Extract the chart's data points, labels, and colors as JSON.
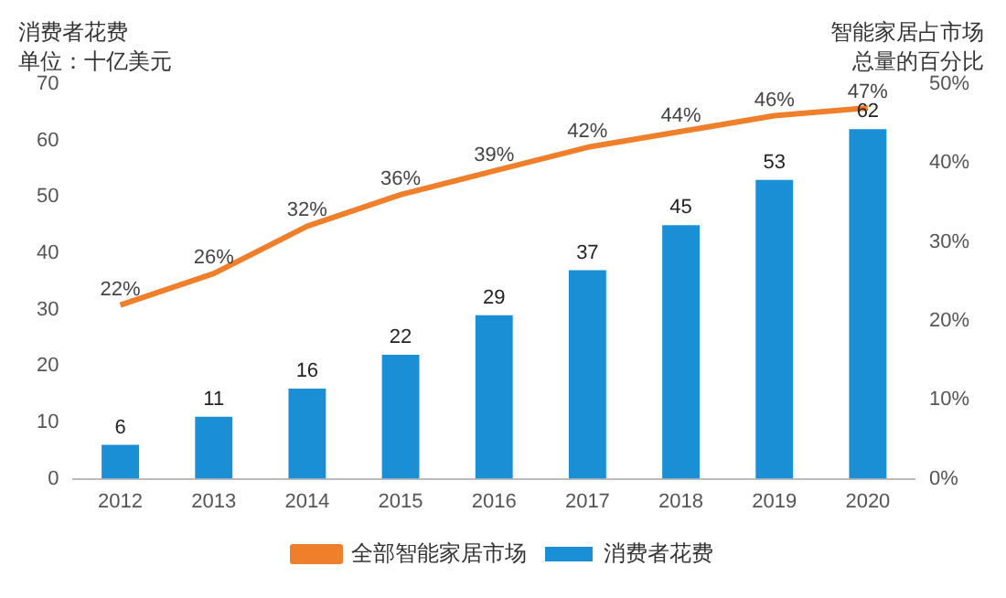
{
  "chart_data": {
    "type": "bar",
    "ylabel": "消费者花费",
    "annotations": [
      "单位：十亿美元"
    ],
    "y2label": "智能家居占市场总量的百分比",
    "categories": [
      "2012",
      "2013",
      "2014",
      "2015",
      "2016",
      "2017",
      "2018",
      "2019",
      "2020"
    ],
    "series": [
      {
        "name": "消费者花费",
        "color": "#1a8fd6",
        "values": [
          6,
          11,
          16,
          22,
          29,
          37,
          45,
          53,
          62
        ],
        "value_labels": [
          "6",
          "11",
          "16",
          "22",
          "29",
          "37",
          "45",
          "53",
          "62"
        ]
      },
      {
        "name": "全部智能家居市场",
        "type": "line",
        "axis": "y2",
        "color": "#f07f2b",
        "values": [
          22,
          26,
          32,
          36,
          39,
          42,
          44,
          46,
          47
        ],
        "value_labels": [
          "22%",
          "26%",
          "32%",
          "36%",
          "39%",
          "42%",
          "44%",
          "46%",
          "47%"
        ]
      }
    ],
    "ylim": [
      0,
      70
    ],
    "yticks": [
      0,
      10,
      20,
      30,
      40,
      50,
      60,
      70
    ],
    "y2lim": [
      0,
      50
    ],
    "y2ticks": [
      {
        "value": 0,
        "label": "0%"
      },
      {
        "value": 10,
        "label": "10%"
      },
      {
        "value": 20,
        "label": "20%"
      },
      {
        "value": 30,
        "label": "30%"
      },
      {
        "value": 40,
        "label": "40%"
      },
      {
        "value": 50,
        "label": "50%"
      }
    ],
    "grid": false,
    "legend": "bottom",
    "marker": "none",
    "line_style": "solid"
  }
}
